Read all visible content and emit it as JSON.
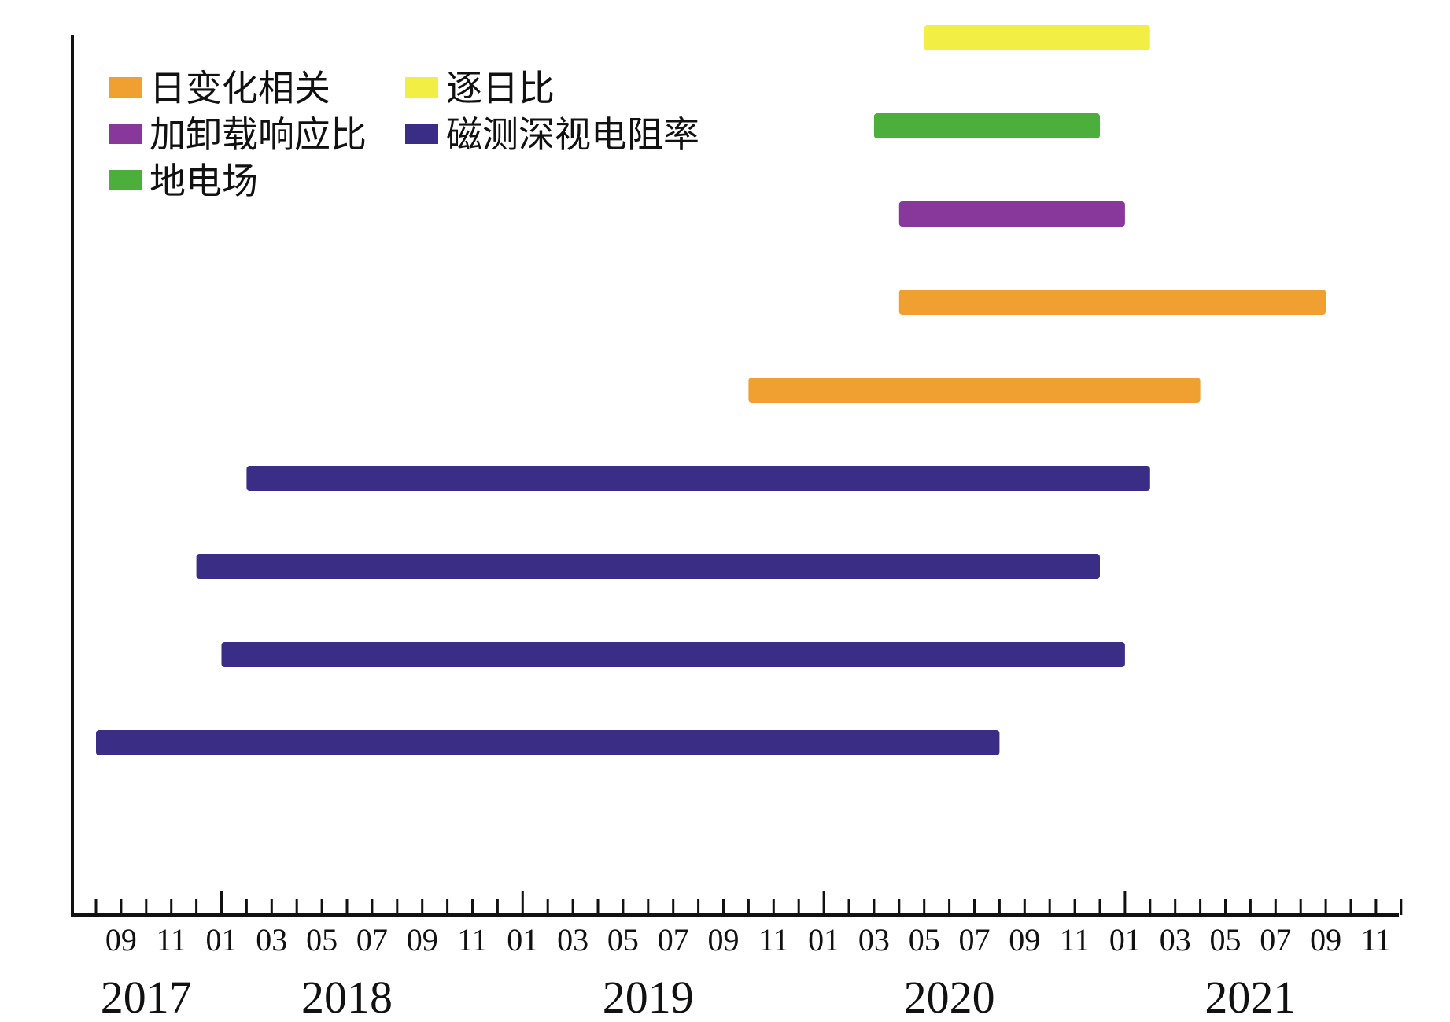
{
  "chart_data": {
    "type": "bar",
    "orientation": "horizontal-gantt",
    "title": "",
    "xlabel": "",
    "ylabel": "",
    "x_axis": {
      "start": "2017-08",
      "end": "2021-12",
      "tick_labels": [
        "09",
        "11",
        "01",
        "03",
        "05",
        "07",
        "09",
        "11",
        "01",
        "03",
        "05",
        "07",
        "09",
        "11",
        "01",
        "03",
        "05",
        "07",
        "09",
        "11",
        "01",
        "03",
        "05",
        "07",
        "09",
        "11"
      ],
      "tick_dates": [
        "2017-09",
        "2017-11",
        "2018-01",
        "2018-03",
        "2018-05",
        "2018-07",
        "2018-09",
        "2018-11",
        "2019-01",
        "2019-03",
        "2019-05",
        "2019-07",
        "2019-09",
        "2019-11",
        "2020-01",
        "2020-03",
        "2020-05",
        "2020-07",
        "2020-09",
        "2020-11",
        "2021-01",
        "2021-03",
        "2021-05",
        "2021-07",
        "2021-09",
        "2021-11"
      ],
      "year_labels": [
        {
          "label": "2017",
          "date": "2017-10"
        },
        {
          "label": "2018",
          "date": "2018-06"
        },
        {
          "label": "2019",
          "date": "2019-06"
        },
        {
          "label": "2020",
          "date": "2020-06"
        },
        {
          "label": "2021",
          "date": "2021-06"
        }
      ]
    },
    "legend": {
      "placement": "top-left",
      "entries": [
        {
          "name": "日变化相关",
          "color": "#f0a030"
        },
        {
          "name": "逐日比",
          "color": "#f3ee44"
        },
        {
          "name": "加卸载响应比",
          "color": "#87389a"
        },
        {
          "name": "磁测深视电阻率",
          "color": "#3a2d85"
        },
        {
          "name": "地电场",
          "color": "#4caf3c"
        }
      ]
    },
    "series": [
      {
        "series": "逐日比",
        "color": "#f3ee44",
        "start": "2020-05",
        "end": "2021-02"
      },
      {
        "series": "地电场",
        "color": "#4caf3c",
        "start": "2020-03",
        "end": "2020-12"
      },
      {
        "series": "加卸载响应比",
        "color": "#87389a",
        "start": "2020-04",
        "end": "2021-01"
      },
      {
        "series": "日变化相关",
        "color": "#f0a030",
        "start": "2020-04",
        "end": "2021-09"
      },
      {
        "series": "日变化相关",
        "color": "#f0a030",
        "start": "2019-10",
        "end": "2021-04"
      },
      {
        "series": "磁测深视电阻率",
        "color": "#3a2d85",
        "start": "2018-02",
        "end": "2021-02"
      },
      {
        "series": "磁测深视电阻率",
        "color": "#3a2d85",
        "start": "2017-12",
        "end": "2020-12"
      },
      {
        "series": "磁测深视电阻率",
        "color": "#3a2d85",
        "start": "2018-01",
        "end": "2021-01"
      },
      {
        "series": "磁测深视电阻率",
        "color": "#3a2d85",
        "start": "2017-08",
        "end": "2020-08"
      }
    ],
    "grid": false
  }
}
